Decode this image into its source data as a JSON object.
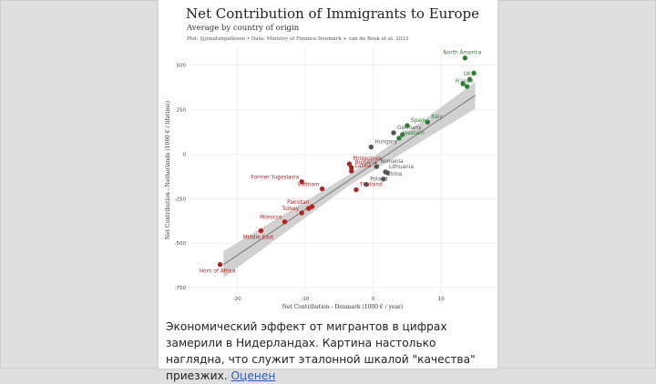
{
  "post": {
    "text": "Экономический эффект от мигрантов в цифрах замерили в Нидерландах. Картина настолько наглядна, что служит эталонной шкалой \"качества\" приезжих.",
    "more_link": "Оценен"
  },
  "chart_data": {
    "type": "scatter",
    "title": "Net Contribution of Immigrants to Europe",
    "subtitle": "Average by country of origin",
    "caption": "Plot: @jonatanpallesen • Data: Ministry of Finance Denmark + van de Beek et al. 2023",
    "xlabel": "Net Contribution - Denmark (1000 € / year)",
    "ylabel": "Net Contribution - Netherlands (1000 € / lifetime)",
    "xlim": [
      -27,
      18
    ],
    "ylim": [
      -780,
      600
    ],
    "xticks": [
      -20,
      -10,
      0,
      10
    ],
    "yticks": [
      -750,
      -500,
      -250,
      0,
      250,
      500
    ],
    "grid": true,
    "legend": "none",
    "trend": {
      "x": [
        -22,
        15
      ],
      "y": [
        -620,
        330
      ]
    },
    "colors": {
      "positive": "#2e7d32",
      "neutral": "#555555",
      "negative": "#b22222",
      "band": "#c9c9c9",
      "line": "#777777"
    },
    "points": [
      {
        "label": "North America",
        "x": 13.5,
        "y": 540,
        "group": "positive"
      },
      {
        "label": "UK",
        "x": 14.2,
        "y": 420,
        "group": "positive"
      },
      {
        "label": "France",
        "x": 13.8,
        "y": 380,
        "group": "positive"
      },
      {
        "label": "",
        "x": 14.8,
        "y": 455,
        "group": "positive"
      },
      {
        "label": "",
        "x": 13.2,
        "y": 395,
        "group": "positive"
      },
      {
        "label": "Italy",
        "x": 8.0,
        "y": 180,
        "group": "positive"
      },
      {
        "label": "Spain",
        "x": 5.0,
        "y": 160,
        "group": "positive"
      },
      {
        "label": "",
        "x": 4.3,
        "y": 110,
        "group": "positive"
      },
      {
        "label": "Western",
        "x": 3.8,
        "y": 90,
        "group": "positive"
      },
      {
        "label": "Germany",
        "x": 3.0,
        "y": 120,
        "group": "neutral"
      },
      {
        "label": "Hungary",
        "x": -0.3,
        "y": 40,
        "group": "neutral"
      },
      {
        "label": "Lithuania",
        "x": 1.8,
        "y": -100,
        "group": "neutral"
      },
      {
        "label": "Romania",
        "x": 0.5,
        "y": -70,
        "group": "neutral"
      },
      {
        "label": "China",
        "x": 1.5,
        "y": -140,
        "group": "neutral"
      },
      {
        "label": "",
        "x": 2.1,
        "y": -105,
        "group": "neutral"
      },
      {
        "label": "Poland",
        "x": -1.0,
        "y": -170,
        "group": "neutral"
      },
      {
        "label": "Philippines",
        "x": -3.5,
        "y": -55,
        "group": "negative"
      },
      {
        "label": "Bulgaria",
        "x": -3.2,
        "y": -75,
        "group": "negative"
      },
      {
        "label": "Latvia",
        "x": -3.2,
        "y": -95,
        "group": "negative"
      },
      {
        "label": "Thailand",
        "x": -2.5,
        "y": -200,
        "group": "negative"
      },
      {
        "label": "Former Yugoslavia",
        "x": -10.5,
        "y": -155,
        "group": "negative"
      },
      {
        "label": "Vietnam",
        "x": -7.5,
        "y": -195,
        "group": "negative"
      },
      {
        "label": "Pakistan",
        "x": -9.0,
        "y": -295,
        "group": "negative"
      },
      {
        "label": "Turkey",
        "x": -10.5,
        "y": -330,
        "group": "negative"
      },
      {
        "label": "",
        "x": -9.5,
        "y": -305,
        "group": "negative"
      },
      {
        "label": "Morocco",
        "x": -13.0,
        "y": -380,
        "group": "negative"
      },
      {
        "label": "Middle East",
        "x": -16.5,
        "y": -430,
        "group": "negative"
      },
      {
        "label": "Horn of Africa",
        "x": -22.5,
        "y": -620,
        "group": "negative"
      }
    ]
  }
}
